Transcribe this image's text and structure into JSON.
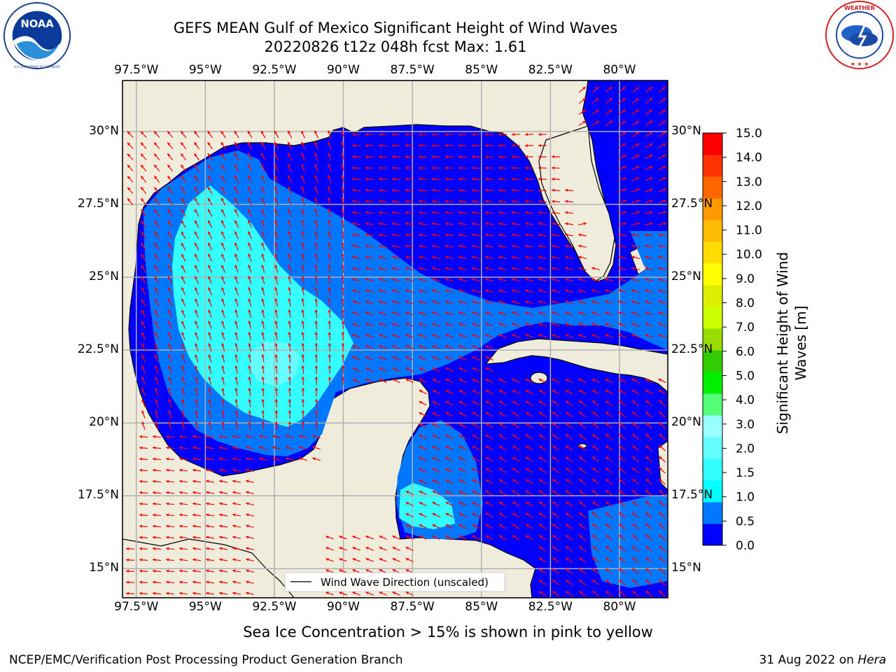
{
  "header": {
    "title": "GEFS MEAN Gulf of Mexico Significant Height of Wind Waves",
    "subtitle": "20220826 t12z 048h fcst   Max: 1.61"
  },
  "logos": {
    "left": {
      "name": "noaa-logo",
      "text": "NOAA",
      "ring_text": "NATIONAL OCEANIC AND ATMOSPHERIC ADMINISTRATION · U.S. DEPARTMENT OF COMMERCE"
    },
    "right": {
      "name": "nws-logo",
      "ring_text": "NATIONAL WEATHER SERVICE"
    }
  },
  "axes": {
    "lon_ticks": [
      "97.5°W",
      "95°W",
      "92.5°W",
      "90°W",
      "87.5°W",
      "85°W",
      "82.5°W",
      "80°W"
    ],
    "lat_ticks": [
      "30°N",
      "27.5°N",
      "25°N",
      "22.5°N",
      "20°N",
      "17.5°N",
      "15°N"
    ],
    "lon_values": [
      -97.5,
      -95,
      -92.5,
      -90,
      -87.5,
      -85,
      -82.5,
      -80
    ],
    "lat_values": [
      30,
      27.5,
      25,
      22.5,
      20,
      17.5,
      15
    ],
    "extent": {
      "lon_min": -98,
      "lon_max": -78.25,
      "lat_min": 14,
      "lat_max": 31.75
    }
  },
  "legend": {
    "line_label": "Wind Wave Direction (unscaled)"
  },
  "colorbar": {
    "label": "Significant Height of Wind Waves [m]",
    "label_line1": "Significant Height of Wind",
    "label_line2": "Waves [m]",
    "ticks": [
      "15.0",
      "14.0",
      "13.0",
      "12.0",
      "11.0",
      "10.0",
      "9.0",
      "8.0",
      "7.0",
      "6.0",
      "5.0",
      "4.0",
      "3.0",
      "2.0",
      "1.5",
      "1.0",
      "0.5",
      "0.0"
    ],
    "colors_bottom_to_top": [
      "#0000ff",
      "#0077ff",
      "#00ffff",
      "#33ffff",
      "#66ffff",
      "#99ffff",
      "#55ff77",
      "#00ee00",
      "#33cc00",
      "#99dd00",
      "#ccff00",
      "#ddee00",
      "#ffff00",
      "#ffdd00",
      "#ffbb00",
      "#ff9900",
      "#ff6600",
      "#ff3300",
      "#ff0000"
    ]
  },
  "colors": {
    "land": "#efecdc",
    "band_0_0.5": "#0000ff",
    "band_0.5_1.0": "#0077ff",
    "band_1.0_1.5": "#00ffff",
    "band_1.5_2.0": "#66ffff",
    "arrows": "#ff0000",
    "grid": "#b0b0b0"
  },
  "notes": {
    "ice": "Sea Ice Concentration > 15% is shown in pink to yellow"
  },
  "footer": {
    "credit": "NCEP/EMC/Verification Post Processing Product Generation Branch",
    "date": "31 Aug 2022 on",
    "machine": "Hera"
  }
}
